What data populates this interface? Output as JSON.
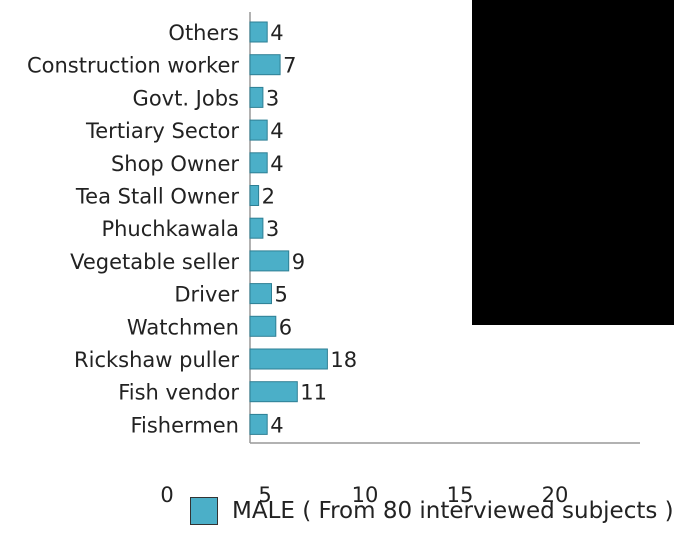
{
  "chart_data": {
    "type": "bar",
    "orientation": "horizontal",
    "categories": [
      "Others",
      "Construction worker",
      "Govt. Jobs",
      "Tertiary Sector",
      "Shop Owner",
      "Tea Stall Owner",
      "Phuchkawala",
      "Vegetable seller",
      "Driver",
      "Watchmen",
      "Rickshaw puller",
      "Fish vendor",
      "Fishermen"
    ],
    "series": [
      {
        "name": "MALE ( From 80 interviewed subjects )",
        "values": [
          4,
          7,
          3,
          4,
          4,
          2,
          3,
          9,
          5,
          6,
          18,
          11,
          4
        ]
      }
    ],
    "x_ticks": [
      "0",
      "5",
      "10",
      "15",
      "20"
    ],
    "legend": {
      "label": "MALE ( From 80 interviewed subjects )",
      "position": "bottom"
    },
    "bar_color": "#4BAFC8",
    "grid": false
  }
}
